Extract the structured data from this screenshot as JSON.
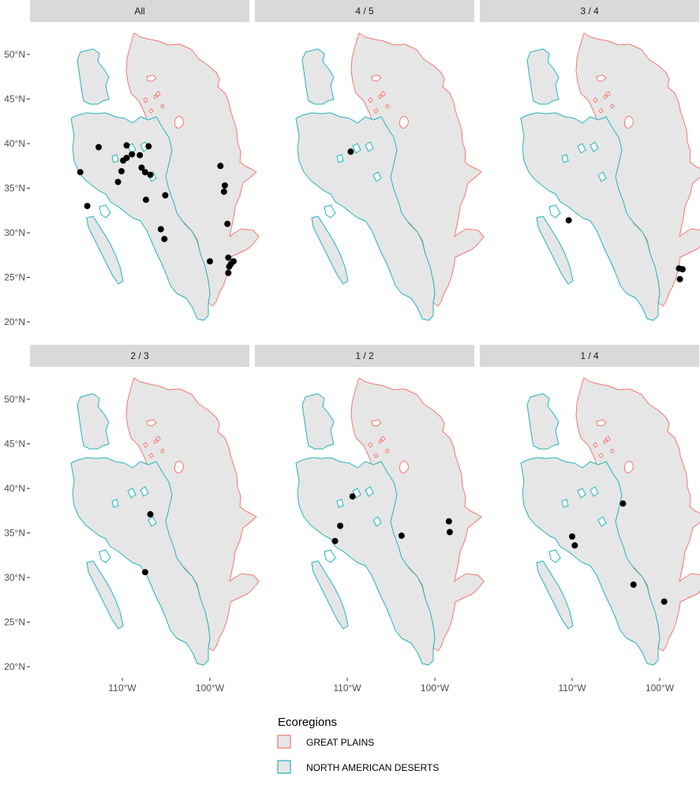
{
  "map": {
    "y_ticks": [
      {
        "value": 50,
        "label": "50°N"
      },
      {
        "value": 45,
        "label": "45°N"
      },
      {
        "value": 40,
        "label": "40°N"
      },
      {
        "value": 35,
        "label": "35°N"
      },
      {
        "value": 30,
        "label": "30°N"
      },
      {
        "value": 25,
        "label": "25°N"
      },
      {
        "value": 20,
        "label": "20°N"
      }
    ],
    "x_ticks": [
      {
        "value": -110,
        "label": "110°W"
      },
      {
        "value": -100,
        "label": "100°W"
      }
    ],
    "panels": [
      {
        "title": "All",
        "points": [
          [
            -114.8,
            36.8
          ],
          [
            -112.7,
            39.6
          ],
          [
            -114,
            33
          ],
          [
            -110.5,
            35.7
          ],
          [
            -109.9,
            38.1
          ],
          [
            -109.5,
            39.8
          ],
          [
            -109.5,
            38.4
          ],
          [
            -108.9,
            38.8
          ],
          [
            -108,
            38.7
          ],
          [
            -110.1,
            36.9
          ],
          [
            -107,
            39.7
          ],
          [
            -107.8,
            37.3
          ],
          [
            -107.4,
            36.8
          ],
          [
            -107.3,
            33.7
          ],
          [
            -106.8,
            36.5
          ],
          [
            -105.1,
            34.2
          ],
          [
            -105.6,
            30.4
          ],
          [
            -105.2,
            29.3
          ],
          [
            -98.8,
            37.5
          ],
          [
            -98.4,
            34.6
          ],
          [
            -98.3,
            35.3
          ],
          [
            -98,
            31
          ],
          [
            -100,
            26.8
          ],
          [
            -97.9,
            27.2
          ],
          [
            -97.6,
            26.5
          ],
          [
            -97.3,
            26.8
          ],
          [
            -97.8,
            26.2
          ],
          [
            -97.9,
            25.5
          ]
        ]
      },
      {
        "title": "4 / 5",
        "points": [
          [
            -109.6,
            39.1
          ]
        ]
      },
      {
        "title": "3 / 4",
        "points": [
          [
            -110.4,
            31.4
          ],
          [
            -97.8,
            26
          ],
          [
            -97.4,
            25.9
          ],
          [
            -97.7,
            24.8
          ]
        ]
      },
      {
        "title": "2 / 3",
        "points": [
          [
            -106.8,
            37.1
          ],
          [
            -107.4,
            30.6
          ]
        ]
      },
      {
        "title": "1 / 2",
        "points": [
          [
            -109.4,
            39.1
          ],
          [
            -110.8,
            35.8
          ],
          [
            -111.4,
            34.1
          ],
          [
            -103.8,
            34.7
          ],
          [
            -98.4,
            36.3
          ],
          [
            -98.3,
            35.1
          ]
        ]
      },
      {
        "title": "1 / 4",
        "points": [
          [
            -110,
            34.6
          ],
          [
            -109.7,
            33.6
          ],
          [
            -104.2,
            38.3
          ],
          [
            -103,
            29.2
          ],
          [
            -99.5,
            27.3
          ]
        ]
      }
    ]
  },
  "legend": {
    "title": "Ecoregions",
    "items": [
      {
        "label": "GREAT PLAINS",
        "color": "#f8766d"
      },
      {
        "label": "NORTH AMERICAN DESERTS",
        "color": "#22b5bf"
      }
    ]
  }
}
